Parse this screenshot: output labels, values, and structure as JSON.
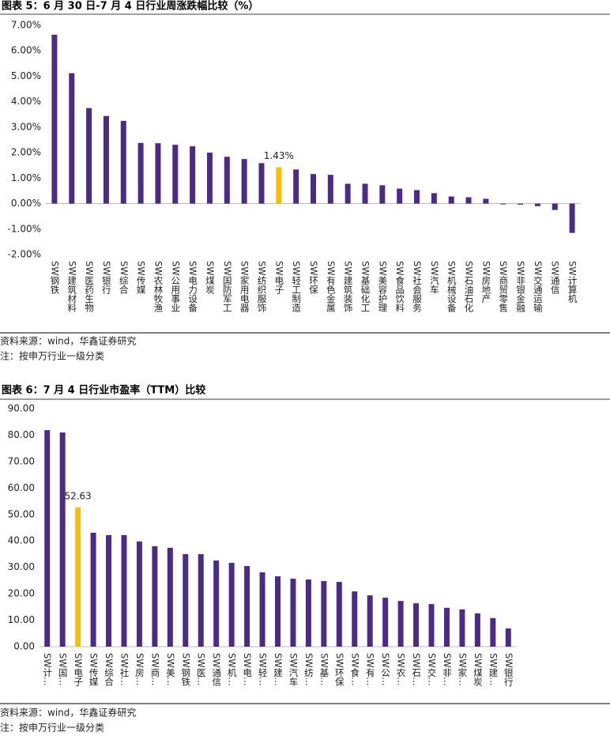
{
  "chart_data": [
    {
      "type": "bar",
      "title": "图表 5：6 月 30 日-7 月 4 日行业周涨跌幅比较（%）",
      "categories": [
        "SW钢铁",
        "SW建筑材料",
        "SW医药生物",
        "SW银行",
        "SW综合",
        "SW传媒",
        "SW农林牧渔",
        "SW公用事业",
        "SW电力设备",
        "SW煤炭",
        "SW国防军工",
        "SW家用电器",
        "SW纺织服饰",
        "SW电子",
        "SW轻工制造",
        "SW环保",
        "SW有色金属",
        "SW建筑装饰",
        "SW基础化工",
        "SW美容护理",
        "SW食品饮料",
        "SW社会服务",
        "SW汽车",
        "SW机械设备",
        "SW石油石化",
        "SW房地产",
        "SW商贸零售",
        "SW非银金融",
        "SW交通运输",
        "SW通信",
        "SW计算机"
      ],
      "values": [
        6.63,
        5.12,
        3.75,
        3.44,
        3.25,
        2.38,
        2.37,
        2.31,
        2.25,
        2.0,
        1.84,
        1.75,
        1.59,
        1.43,
        1.34,
        1.16,
        1.13,
        0.78,
        0.78,
        0.72,
        0.59,
        0.53,
        0.41,
        0.28,
        0.25,
        0.19,
        -0.03,
        -0.04,
        -0.1,
        -0.25,
        -1.15
      ],
      "value_labels": [
        null,
        null,
        null,
        null,
        null,
        null,
        null,
        null,
        null,
        null,
        null,
        null,
        null,
        "1.43%",
        null,
        null,
        null,
        null,
        null,
        null,
        null,
        null,
        null,
        null,
        null,
        null,
        null,
        null,
        null,
        null,
        null
      ],
      "colors": [
        "#4b2c85",
        "#4b2c85",
        "#4b2c85",
        "#4b2c85",
        "#4b2c85",
        "#4b2c85",
        "#4b2c85",
        "#4b2c85",
        "#4b2c85",
        "#4b2c85",
        "#4b2c85",
        "#4b2c85",
        "#4b2c85",
        "#f5c000",
        "#4b2c85",
        "#4b2c85",
        "#4b2c85",
        "#4b2c85",
        "#4b2c85",
        "#4b2c85",
        "#4b2c85",
        "#4b2c85",
        "#4b2c85",
        "#4b2c85",
        "#4b2c85",
        "#4b2c85",
        "#4b2c85",
        "#4b2c85",
        "#4b2c85",
        "#4b2c85",
        "#4b2c85"
      ],
      "ylim": [
        -2,
        7
      ],
      "yticks": [
        {
          "value": 7,
          "label": "7.00%"
        },
        {
          "value": 6,
          "label": "6.00%"
        },
        {
          "value": 5,
          "label": "5.00%"
        },
        {
          "value": 4,
          "label": "4.00%"
        },
        {
          "value": 3,
          "label": "3.00%"
        },
        {
          "value": 2,
          "label": "2.00%"
        },
        {
          "value": 1,
          "label": "1.00%"
        },
        {
          "value": 0,
          "label": "0.00%"
        },
        {
          "value": -1,
          "label": "-1.00%"
        },
        {
          "value": -2,
          "label": "-2.00%"
        }
      ],
      "grid": false,
      "source": "资料来源：wind，华鑫证券研究",
      "note": "注：按申万行业一级分类"
    },
    {
      "type": "bar",
      "title": "图表 6：7 月 4 日行业市盈率（TTM）比较",
      "categories": [
        "SW计…",
        "SW国…",
        "SW电子",
        "SW传媒",
        "SW综合",
        "SW社…",
        "SW房…",
        "SW商…",
        "SW美…",
        "SW钢铁",
        "SW医…",
        "SW通信",
        "SW机…",
        "SW电…",
        "SW轻…",
        "SW建…",
        "SW汽车",
        "SW纺…",
        "SW基…",
        "SW环保",
        "SW食…",
        "SW有…",
        "SW公…",
        "SW农…",
        "SW石…",
        "SW交…",
        "SW非…",
        "SW家…",
        "SW煤炭",
        "SW建…",
        "SW银行"
      ],
      "values": [
        81.9,
        81.0,
        52.63,
        43.1,
        42.2,
        42.2,
        39.8,
        38.0,
        37.4,
        35.0,
        35.0,
        32.6,
        31.7,
        30.5,
        28.1,
        26.6,
        25.7,
        25.4,
        24.8,
        24.5,
        20.9,
        19.4,
        18.5,
        17.3,
        16.4,
        16.1,
        14.7,
        14.1,
        12.6,
        10.8,
        6.9
      ],
      "value_labels": [
        null,
        null,
        "52.63",
        null,
        null,
        null,
        null,
        null,
        null,
        null,
        null,
        null,
        null,
        null,
        null,
        null,
        null,
        null,
        null,
        null,
        null,
        null,
        null,
        null,
        null,
        null,
        null,
        null,
        null,
        null,
        null
      ],
      "colors": [
        "#4b2c85",
        "#4b2c85",
        "#f5c000",
        "#4b2c85",
        "#4b2c85",
        "#4b2c85",
        "#4b2c85",
        "#4b2c85",
        "#4b2c85",
        "#4b2c85",
        "#4b2c85",
        "#4b2c85",
        "#4b2c85",
        "#4b2c85",
        "#4b2c85",
        "#4b2c85",
        "#4b2c85",
        "#4b2c85",
        "#4b2c85",
        "#4b2c85",
        "#4b2c85",
        "#4b2c85",
        "#4b2c85",
        "#4b2c85",
        "#4b2c85",
        "#4b2c85",
        "#4b2c85",
        "#4b2c85",
        "#4b2c85",
        "#4b2c85",
        "#4b2c85"
      ],
      "ylim": [
        0,
        90
      ],
      "yticks": [
        {
          "value": 90,
          "label": "90.00"
        },
        {
          "value": 80,
          "label": "80.00"
        },
        {
          "value": 70,
          "label": "70.00"
        },
        {
          "value": 60,
          "label": "60.00"
        },
        {
          "value": 50,
          "label": "50.00"
        },
        {
          "value": 40,
          "label": "40.00"
        },
        {
          "value": 30,
          "label": "30.00"
        },
        {
          "value": 20,
          "label": "20.00"
        },
        {
          "value": 10,
          "label": "10.00"
        },
        {
          "value": 0,
          "label": "0.00"
        }
      ],
      "grid": false,
      "source": "资料来源：wind，华鑫证券研究",
      "note": "注：按申万行业一级分类"
    }
  ]
}
